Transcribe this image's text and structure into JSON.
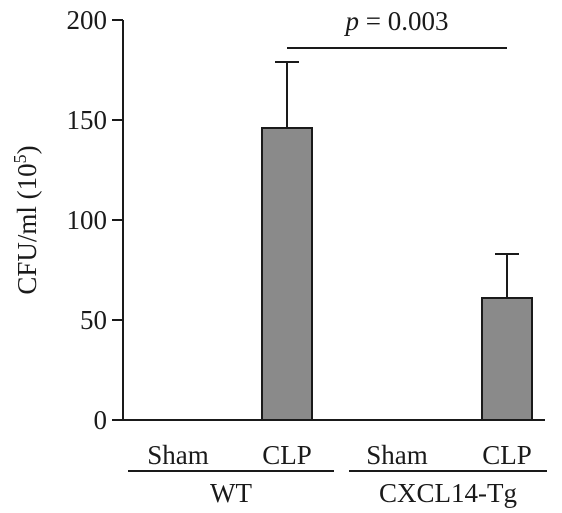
{
  "chart_data": {
    "type": "bar",
    "ylabel": "CFU/ml (10",
    "ylabel_exp": "5",
    "ylabel_close": ")",
    "ylim": [
      0,
      200
    ],
    "yticks": [
      0,
      50,
      100,
      150,
      200
    ],
    "categories": [
      "Sham",
      "CLP",
      "Sham",
      "CLP"
    ],
    "groups": [
      {
        "label": "WT",
        "categories": [
          0,
          1
        ]
      },
      {
        "label": "CXCL14-Tg",
        "categories": [
          2,
          3
        ]
      }
    ],
    "values": [
      0,
      146,
      0,
      61
    ],
    "errors": [
      0,
      33,
      0,
      22
    ],
    "bar_color": "#8a8a8a",
    "annotation": {
      "p_symbol": "p",
      "text": " = 0.003",
      "between": [
        1,
        3
      ]
    }
  }
}
